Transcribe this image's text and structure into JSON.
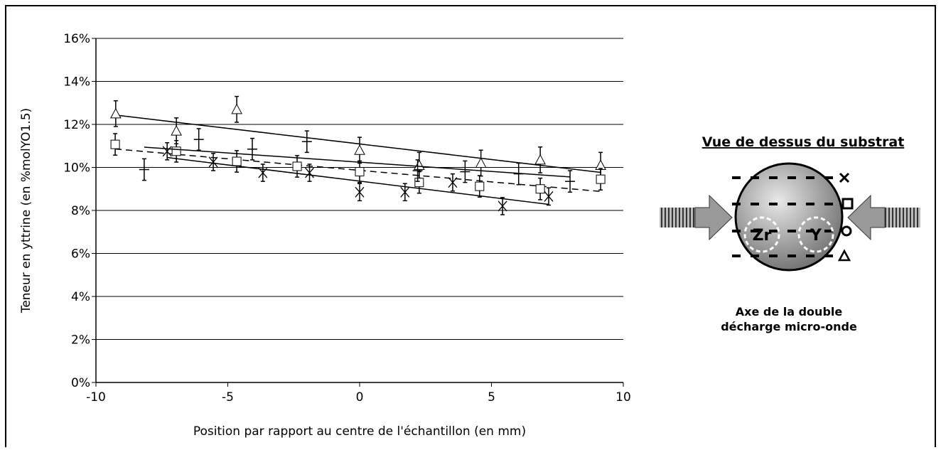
{
  "chart_data": {
    "type": "scatter",
    "ylabel": "Teneur en yttrine (en %molYO1.5)",
    "xlabel": "Position par rapport au centre de l'échantillon (en mm)",
    "xlim": [
      -10,
      10
    ],
    "xticks": [
      -10,
      -5,
      0,
      5,
      10
    ],
    "ylim": [
      0,
      16
    ],
    "yticks": [
      {
        "value": 0,
        "label": "0%"
      },
      {
        "value": 2,
        "label": "2%"
      },
      {
        "value": 4,
        "label": "4%"
      },
      {
        "value": 6,
        "label": "6%"
      },
      {
        "value": 8,
        "label": "8%"
      },
      {
        "value": 10,
        "label": "10%"
      },
      {
        "value": 12,
        "label": "12%"
      },
      {
        "value": 14,
        "label": "14%"
      },
      {
        "value": 16,
        "label": "16%"
      }
    ],
    "grid": true,
    "trendline": true,
    "series": [
      {
        "marker": "triangle",
        "color": "#000000",
        "dashed": false,
        "x": [
          -9.25,
          -6.95,
          -4.66,
          0,
          2.26,
          4.6,
          6.85,
          9.14
        ],
        "values": [
          12.5,
          11.7,
          12.7,
          10.8,
          10.1,
          10.2,
          10.35,
          10.1
        ],
        "errors": [
          0.6,
          0.6,
          0.6,
          0.6,
          0.6,
          0.6,
          0.6,
          0.6
        ]
      },
      {
        "marker": "square",
        "color": "#000000",
        "dashed": true,
        "x": [
          -9.27,
          -6.95,
          -4.66,
          -2.37,
          0,
          2.26,
          4.55,
          6.85,
          9.14
        ],
        "values": [
          11.07,
          10.75,
          10.28,
          10.05,
          9.8,
          9.3,
          9.12,
          9.0,
          9.45
        ],
        "errors": [
          0.5,
          0.5,
          0.5,
          0.5,
          0.5,
          0.5,
          0.5,
          0.5,
          0.5
        ]
      },
      {
        "marker": "cross",
        "color": "#000000",
        "dashed": false,
        "x": [
          -7.3,
          -5.55,
          -3.67,
          -1.9,
          0,
          1.72,
          3.53,
          5.42,
          7.17
        ],
        "values": [
          10.75,
          10.25,
          9.75,
          9.75,
          8.85,
          8.85,
          9.3,
          8.2,
          8.65
        ],
        "errors": [
          0.4,
          0.4,
          0.4,
          0.4,
          0.4,
          0.4,
          0.4,
          0.4,
          0.4
        ]
      },
      {
        "marker": "plus",
        "color": "#000000",
        "dashed": false,
        "x": [
          -8.17,
          -6.1,
          -4.07,
          -2.0,
          2.2,
          4.0,
          6.03,
          7.98
        ],
        "values": [
          9.9,
          11.3,
          10.85,
          11.2,
          9.85,
          9.8,
          9.7,
          9.35
        ],
        "errors": [
          0.5,
          0.5,
          0.5,
          0.5,
          0.5,
          0.5,
          0.5,
          0.5
        ]
      }
    ]
  },
  "diagram": {
    "title": "Vue de dessus du substrat",
    "left_label": "Zr",
    "right_label": "Y",
    "caption": [
      "Axe de la double",
      "décharge micro-onde"
    ]
  }
}
